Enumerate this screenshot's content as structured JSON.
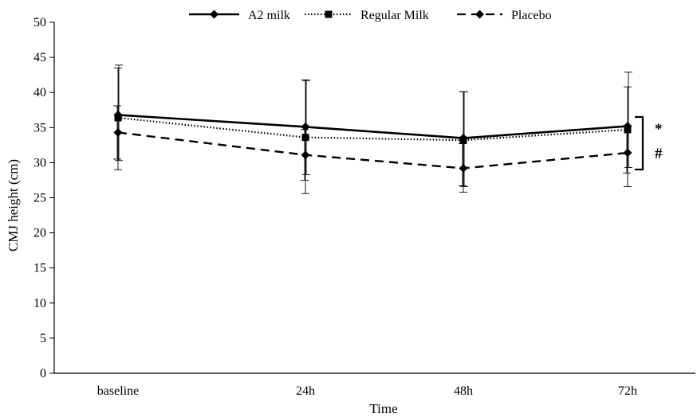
{
  "chart_data": {
    "type": "line",
    "xlabel": "Time",
    "ylabel": "CMJ height (cm)",
    "categories": [
      "baseline",
      "24h",
      "48h",
      "72h"
    ],
    "ylim": [
      0,
      50
    ],
    "yticks": [
      0,
      5,
      10,
      15,
      20,
      25,
      30,
      35,
      40,
      45,
      50
    ],
    "grid": false,
    "legend_position": "top",
    "series": [
      {
        "name": "A2 milk",
        "values": [
          36.8,
          35.1,
          33.5,
          35.2
        ],
        "error_upper": [
          43.9,
          41.7,
          40.1,
          42.9
        ],
        "error_lower": [
          30.3,
          28.3,
          26.6,
          29.3
        ],
        "line_style": "solid",
        "marker": "diamond"
      },
      {
        "name": "Regular Milk",
        "values": [
          36.4,
          33.6,
          33.2,
          34.7
        ],
        "error_upper": [
          43.5,
          41.8,
          40.1,
          40.8
        ],
        "error_lower": [
          29.0,
          25.6,
          25.8,
          26.6
        ],
        "line_style": "dotted",
        "marker": "square"
      },
      {
        "name": "Placebo",
        "values": [
          34.3,
          31.1,
          29.2,
          31.4
        ],
        "error_upper": [
          38.1,
          34.7,
          32.7,
          35.3
        ],
        "error_lower": [
          30.5,
          27.5,
          26.7,
          28.5
        ],
        "line_style": "dashed",
        "marker": "diamond"
      }
    ],
    "annotations": [
      "*",
      "#"
    ]
  },
  "colors": {
    "lines": "#000000",
    "background": "#ffffff"
  }
}
